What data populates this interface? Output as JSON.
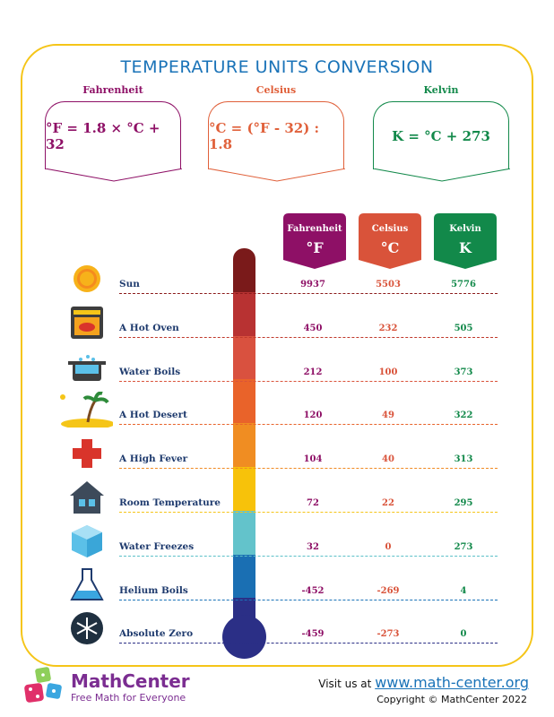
{
  "title": "TEMPERATURE UNITS CONVERSION",
  "formulas": [
    {
      "label": "Fahrenheit",
      "formula": "°F = 1.8 × °C + 32",
      "color": "#8e1066"
    },
    {
      "label": "Celsius",
      "formula": "°C = (°F - 32) : 1.8",
      "color": "#e0603a"
    },
    {
      "label": "Kelvin",
      "formula": "K = °C + 273",
      "color": "#12894a"
    }
  ],
  "columns": [
    {
      "name": "Fahrenheit",
      "symbol": "°F",
      "color": "#8e1066"
    },
    {
      "name": "Celsius",
      "symbol": "°C",
      "color": "#d9533a"
    },
    {
      "name": "Kelvin",
      "symbol": "K",
      "color": "#12894a"
    }
  ],
  "rows": [
    {
      "label": "Sun",
      "f": "9937",
      "c": "5503",
      "k": "5776",
      "icon": "sun-icon",
      "line_color": "#8b1a1a",
      "therm_color": "#7a1a1a"
    },
    {
      "label": "A Hot Oven",
      "f": "450",
      "c": "232",
      "k": "505",
      "icon": "oven-icon",
      "line_color": "#c0392b",
      "therm_color": "#b83232"
    },
    {
      "label": "Water Boils",
      "f": "212",
      "c": "100",
      "k": "373",
      "icon": "boiling-pot-icon",
      "line_color": "#d9533a",
      "therm_color": "#d9513f"
    },
    {
      "label": "A Hot Desert",
      "f": "120",
      "c": "49",
      "k": "322",
      "icon": "desert-island-icon",
      "line_color": "#e8632a",
      "therm_color": "#e9632a"
    },
    {
      "label": "A High Fever",
      "f": "104",
      "c": "40",
      "k": "313",
      "icon": "medical-cross-icon",
      "line_color": "#f08a22",
      "therm_color": "#f08d22"
    },
    {
      "label": "Room Temperature",
      "f": "72",
      "c": "22",
      "k": "295",
      "icon": "house-icon",
      "line_color": "#f5c518",
      "therm_color": "#f7c20a"
    },
    {
      "label": "Water Freezes",
      "f": "32",
      "c": "0",
      "k": "273",
      "icon": "ice-cube-icon",
      "line_color": "#5bc0c8",
      "therm_color": "#63c3cb"
    },
    {
      "label": "Helium Boils",
      "f": "-452",
      "c": "-269",
      "k": "4",
      "icon": "flask-icon",
      "line_color": "#1a73b8",
      "therm_color": "#1a6fb3"
    },
    {
      "label": "Absolute Zero",
      "f": "-459",
      "c": "-273",
      "k": "0",
      "icon": "snowflake-icon",
      "line_color": "#2b2f86",
      "therm_color": "#2b2f86"
    }
  ],
  "footer": {
    "brand": "MathCenter",
    "tagline": "Free Math for Everyone",
    "visit_prefix": "Visit us at",
    "url": "www.math-center.org",
    "copyright": "Copyright © MathCenter 2022"
  }
}
